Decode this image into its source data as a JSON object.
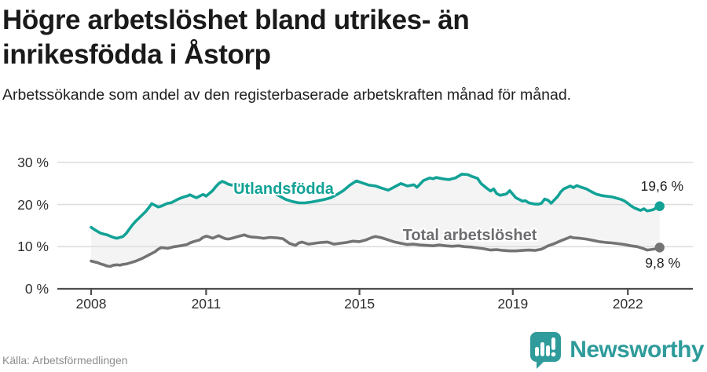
{
  "header": {
    "title": "Högre arbetslöshet bland utrikes- än inrikesfödda i Åstorp",
    "subtitle": "Arbetssökande som andel av den registerbaserade arbetskraften månad för månad."
  },
  "colors": {
    "accent_teal": "#12a296",
    "line_gray": "#737373",
    "band_fill": "#f4f4f5",
    "grid": "#dedede",
    "axis": "#4d4d4d",
    "title_text": "#1a1a1a",
    "muted_text": "#8c8c8c",
    "brand_teal": "#2f9b9b"
  },
  "chart_data": {
    "type": "line",
    "unit": "%",
    "ylim": [
      0,
      30
    ],
    "x_range": [
      2008,
      2022.83
    ],
    "grid": true,
    "legend": "inline-labels",
    "y_ticks": [
      {
        "label": "30 %",
        "value": 30
      },
      {
        "label": "20 %",
        "value": 20
      },
      {
        "label": "10 %",
        "value": 10
      },
      {
        "label": "0 %",
        "value": 0
      }
    ],
    "x_ticks": [
      {
        "label": "2008",
        "year": 2008
      },
      {
        "label": "2011",
        "year": 2011
      },
      {
        "label": "2015",
        "year": 2015
      },
      {
        "label": "2019",
        "year": 2019
      },
      {
        "label": "2022",
        "year": 2022
      }
    ],
    "series": [
      {
        "name": "Utlandsfödda",
        "color": "#12a296",
        "end_label": "19,6 %",
        "end_value": 19.6,
        "points": [
          [
            2008.0,
            14.6
          ],
          [
            2008.08,
            14.1
          ],
          [
            2008.17,
            13.6
          ],
          [
            2008.25,
            13.2
          ],
          [
            2008.33,
            13.0
          ],
          [
            2008.42,
            12.8
          ],
          [
            2008.5,
            12.5
          ],
          [
            2008.58,
            12.2
          ],
          [
            2008.67,
            12.0
          ],
          [
            2008.75,
            12.2
          ],
          [
            2008.83,
            12.4
          ],
          [
            2008.92,
            13.2
          ],
          [
            2009.0,
            14.2
          ],
          [
            2009.08,
            15.2
          ],
          [
            2009.17,
            16.1
          ],
          [
            2009.25,
            16.8
          ],
          [
            2009.33,
            17.5
          ],
          [
            2009.42,
            18.3
          ],
          [
            2009.5,
            19.2
          ],
          [
            2009.58,
            20.2
          ],
          [
            2009.67,
            19.8
          ],
          [
            2009.75,
            19.4
          ],
          [
            2009.83,
            19.6
          ],
          [
            2009.92,
            20.0
          ],
          [
            2010.0,
            20.3
          ],
          [
            2010.08,
            20.4
          ],
          [
            2010.17,
            20.8
          ],
          [
            2010.25,
            21.2
          ],
          [
            2010.33,
            21.5
          ],
          [
            2010.42,
            21.8
          ],
          [
            2010.5,
            22.0
          ],
          [
            2010.58,
            22.3
          ],
          [
            2010.67,
            21.9
          ],
          [
            2010.75,
            21.6
          ],
          [
            2010.83,
            22.0
          ],
          [
            2010.92,
            22.4
          ],
          [
            2011.0,
            22.0
          ],
          [
            2011.08,
            22.6
          ],
          [
            2011.17,
            23.3
          ],
          [
            2011.25,
            24.2
          ],
          [
            2011.33,
            25.0
          ],
          [
            2011.42,
            25.5
          ],
          [
            2011.5,
            25.2
          ],
          [
            2011.58,
            24.8
          ],
          [
            2011.67,
            24.6
          ],
          [
            2011.75,
            24.9
          ],
          [
            2011.83,
            24.7
          ],
          [
            2011.92,
            24.4
          ],
          [
            2012.08,
            24.3
          ],
          [
            2012.25,
            24.5
          ],
          [
            2012.42,
            24.0
          ],
          [
            2012.58,
            23.4
          ],
          [
            2012.75,
            22.8
          ],
          [
            2012.92,
            22.0
          ],
          [
            2013.08,
            21.2
          ],
          [
            2013.25,
            20.7
          ],
          [
            2013.42,
            20.4
          ],
          [
            2013.58,
            20.4
          ],
          [
            2013.75,
            20.6
          ],
          [
            2013.92,
            20.9
          ],
          [
            2014.08,
            21.2
          ],
          [
            2014.25,
            21.6
          ],
          [
            2014.42,
            22.4
          ],
          [
            2014.58,
            23.3
          ],
          [
            2014.75,
            24.6
          ],
          [
            2014.92,
            25.6
          ],
          [
            2015.08,
            25.1
          ],
          [
            2015.25,
            24.6
          ],
          [
            2015.42,
            24.4
          ],
          [
            2015.58,
            23.9
          ],
          [
            2015.75,
            23.4
          ],
          [
            2015.92,
            24.2
          ],
          [
            2016.08,
            25.0
          ],
          [
            2016.25,
            24.4
          ],
          [
            2016.42,
            24.7
          ],
          [
            2016.5,
            24.1
          ],
          [
            2016.67,
            25.7
          ],
          [
            2016.83,
            26.3
          ],
          [
            2016.92,
            26.1
          ],
          [
            2017.0,
            26.4
          ],
          [
            2017.17,
            26.1
          ],
          [
            2017.33,
            25.9
          ],
          [
            2017.5,
            26.3
          ],
          [
            2017.67,
            27.2
          ],
          [
            2017.83,
            27.1
          ],
          [
            2017.92,
            26.7
          ],
          [
            2018.08,
            26.2
          ],
          [
            2018.17,
            25.0
          ],
          [
            2018.33,
            23.8
          ],
          [
            2018.42,
            23.2
          ],
          [
            2018.5,
            23.7
          ],
          [
            2018.58,
            22.6
          ],
          [
            2018.67,
            22.2
          ],
          [
            2018.83,
            22.5
          ],
          [
            2018.92,
            23.3
          ],
          [
            2019.08,
            21.6
          ],
          [
            2019.17,
            21.2
          ],
          [
            2019.25,
            20.8
          ],
          [
            2019.33,
            20.9
          ],
          [
            2019.42,
            20.4
          ],
          [
            2019.58,
            20.1
          ],
          [
            2019.67,
            20.1
          ],
          [
            2019.75,
            20.3
          ],
          [
            2019.83,
            21.3
          ],
          [
            2019.92,
            21.0
          ],
          [
            2020.0,
            20.3
          ],
          [
            2020.17,
            21.9
          ],
          [
            2020.25,
            23.0
          ],
          [
            2020.33,
            23.7
          ],
          [
            2020.5,
            24.4
          ],
          [
            2020.58,
            24.0
          ],
          [
            2020.67,
            24.5
          ],
          [
            2020.75,
            24.2
          ],
          [
            2020.92,
            23.7
          ],
          [
            2021.0,
            23.3
          ],
          [
            2021.08,
            22.9
          ],
          [
            2021.17,
            22.5
          ],
          [
            2021.33,
            22.1
          ],
          [
            2021.5,
            21.9
          ],
          [
            2021.58,
            21.8
          ],
          [
            2021.67,
            21.6
          ],
          [
            2021.83,
            21.2
          ],
          [
            2021.92,
            20.8
          ],
          [
            2022.0,
            20.3
          ],
          [
            2022.08,
            19.7
          ],
          [
            2022.17,
            19.2
          ],
          [
            2022.33,
            18.6
          ],
          [
            2022.42,
            19.0
          ],
          [
            2022.5,
            18.5
          ],
          [
            2022.58,
            18.6
          ],
          [
            2022.67,
            18.8
          ],
          [
            2022.75,
            19.3
          ],
          [
            2022.83,
            19.6
          ]
        ]
      },
      {
        "name": "Total arbetslöshet",
        "color": "#737373",
        "end_label": "9,8 %",
        "end_value": 9.8,
        "points": [
          [
            2008.0,
            6.6
          ],
          [
            2008.08,
            6.4
          ],
          [
            2008.17,
            6.2
          ],
          [
            2008.25,
            5.9
          ],
          [
            2008.33,
            5.7
          ],
          [
            2008.42,
            5.4
          ],
          [
            2008.5,
            5.3
          ],
          [
            2008.58,
            5.6
          ],
          [
            2008.67,
            5.7
          ],
          [
            2008.75,
            5.6
          ],
          [
            2008.83,
            5.8
          ],
          [
            2008.92,
            5.9
          ],
          [
            2009.0,
            6.1
          ],
          [
            2009.17,
            6.6
          ],
          [
            2009.33,
            7.2
          ],
          [
            2009.5,
            8.0
          ],
          [
            2009.67,
            8.8
          ],
          [
            2009.75,
            9.4
          ],
          [
            2009.83,
            9.8
          ],
          [
            2009.92,
            9.7
          ],
          [
            2010.0,
            9.6
          ],
          [
            2010.08,
            9.8
          ],
          [
            2010.17,
            10.0
          ],
          [
            2010.33,
            10.2
          ],
          [
            2010.5,
            10.5
          ],
          [
            2010.58,
            10.9
          ],
          [
            2010.67,
            11.2
          ],
          [
            2010.75,
            11.4
          ],
          [
            2010.83,
            11.6
          ],
          [
            2010.92,
            12.2
          ],
          [
            2011.0,
            12.5
          ],
          [
            2011.08,
            12.3
          ],
          [
            2011.17,
            12.0
          ],
          [
            2011.25,
            12.3
          ],
          [
            2011.33,
            12.6
          ],
          [
            2011.42,
            12.2
          ],
          [
            2011.5,
            11.9
          ],
          [
            2011.58,
            11.8
          ],
          [
            2011.67,
            12.0
          ],
          [
            2011.75,
            12.2
          ],
          [
            2011.83,
            12.4
          ],
          [
            2011.92,
            12.6
          ],
          [
            2012.0,
            12.8
          ],
          [
            2012.08,
            12.5
          ],
          [
            2012.17,
            12.3
          ],
          [
            2012.33,
            12.2
          ],
          [
            2012.5,
            12.0
          ],
          [
            2012.67,
            12.2
          ],
          [
            2012.83,
            12.1
          ],
          [
            2013.0,
            11.9
          ],
          [
            2013.08,
            11.4
          ],
          [
            2013.17,
            10.8
          ],
          [
            2013.33,
            10.3
          ],
          [
            2013.42,
            10.9
          ],
          [
            2013.5,
            11.1
          ],
          [
            2013.67,
            10.6
          ],
          [
            2013.83,
            10.8
          ],
          [
            2014.0,
            11.0
          ],
          [
            2014.17,
            11.1
          ],
          [
            2014.33,
            10.6
          ],
          [
            2014.5,
            10.8
          ],
          [
            2014.67,
            11.0
          ],
          [
            2014.83,
            11.3
          ],
          [
            2015.0,
            11.2
          ],
          [
            2015.17,
            11.6
          ],
          [
            2015.33,
            12.2
          ],
          [
            2015.42,
            12.4
          ],
          [
            2015.58,
            12.1
          ],
          [
            2015.75,
            11.6
          ],
          [
            2015.92,
            11.1
          ],
          [
            2016.08,
            10.8
          ],
          [
            2016.25,
            10.5
          ],
          [
            2016.42,
            10.6
          ],
          [
            2016.58,
            10.4
          ],
          [
            2016.75,
            10.3
          ],
          [
            2016.92,
            10.2
          ],
          [
            2017.08,
            10.4
          ],
          [
            2017.25,
            10.2
          ],
          [
            2017.42,
            10.1
          ],
          [
            2017.58,
            10.2
          ],
          [
            2017.75,
            10.0
          ],
          [
            2017.92,
            9.9
          ],
          [
            2018.08,
            9.7
          ],
          [
            2018.25,
            9.5
          ],
          [
            2018.42,
            9.2
          ],
          [
            2018.58,
            9.3
          ],
          [
            2018.75,
            9.1
          ],
          [
            2018.92,
            9.0
          ],
          [
            2019.08,
            9.0
          ],
          [
            2019.25,
            9.1
          ],
          [
            2019.42,
            9.2
          ],
          [
            2019.58,
            9.1
          ],
          [
            2019.75,
            9.4
          ],
          [
            2019.92,
            10.2
          ],
          [
            2020.08,
            10.7
          ],
          [
            2020.25,
            11.4
          ],
          [
            2020.42,
            12.0
          ],
          [
            2020.5,
            12.3
          ],
          [
            2020.58,
            12.1
          ],
          [
            2020.75,
            12.0
          ],
          [
            2020.92,
            11.8
          ],
          [
            2021.08,
            11.5
          ],
          [
            2021.25,
            11.2
          ],
          [
            2021.42,
            11.0
          ],
          [
            2021.58,
            10.9
          ],
          [
            2021.75,
            10.7
          ],
          [
            2021.92,
            10.5
          ],
          [
            2022.08,
            10.2
          ],
          [
            2022.25,
            10.0
          ],
          [
            2022.42,
            9.5
          ],
          [
            2022.5,
            9.2
          ],
          [
            2022.58,
            9.3
          ],
          [
            2022.67,
            9.4
          ],
          [
            2022.75,
            9.5
          ],
          [
            2022.83,
            9.8
          ]
        ]
      }
    ]
  },
  "footer": {
    "source": "Källa: Arbetsförmedlingen",
    "brand": "Newsworthy"
  }
}
